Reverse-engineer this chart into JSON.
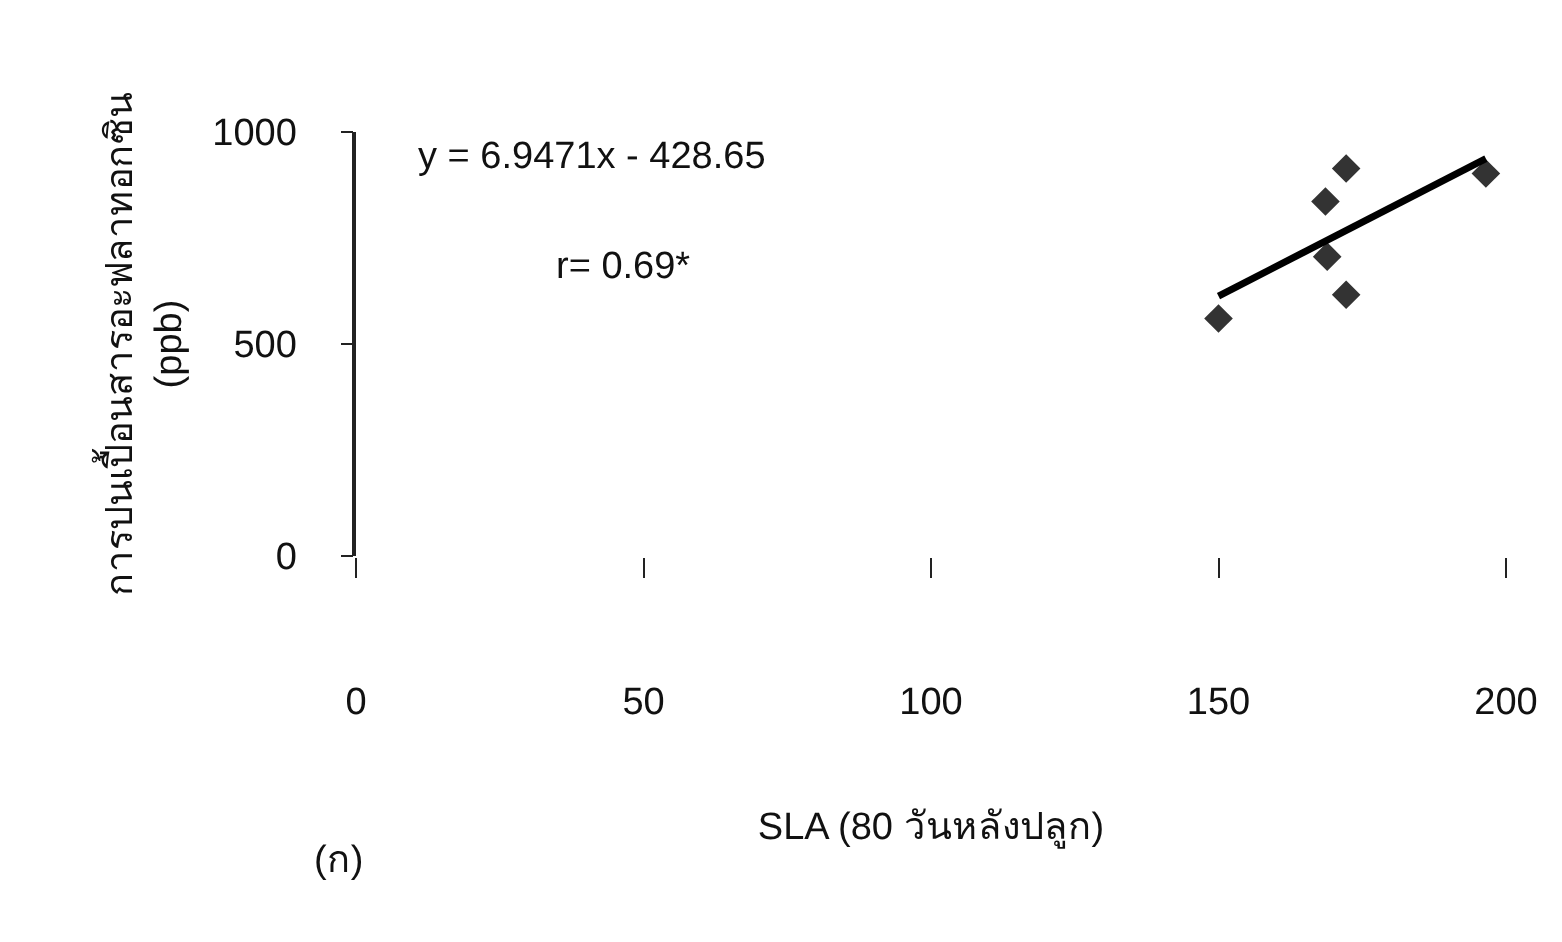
{
  "chart_data": {
    "type": "scatter",
    "xlabel": "SLA (80 วันหลังปลูก)",
    "ylabel": "การปนเปื้อนสารอะฟลาทอกซิน\n(ppb)",
    "annotations": [
      "y = 6.9471x - 428.65",
      "r= 0.69*",
      "(ก)"
    ],
    "series": [
      {
        "color": "#333333",
        "marker": "diamond",
        "x": [
          150,
          168.6,
          168.9,
          172.2,
          172.2,
          196.5
        ],
        "values": [
          560,
          836,
          706,
          914,
          616,
          902
        ]
      },
      {
        "type": "line",
        "color": "#000000",
        "marker": "none",
        "x": [
          150,
          196.5
        ],
        "values": [
          613,
          937
        ]
      }
    ],
    "xlim": [
      0,
      200
    ],
    "xticks": [
      0,
      50,
      100,
      150,
      200
    ],
    "ylim": [
      0,
      1000
    ],
    "yticks": [
      0,
      500,
      1000
    ]
  }
}
